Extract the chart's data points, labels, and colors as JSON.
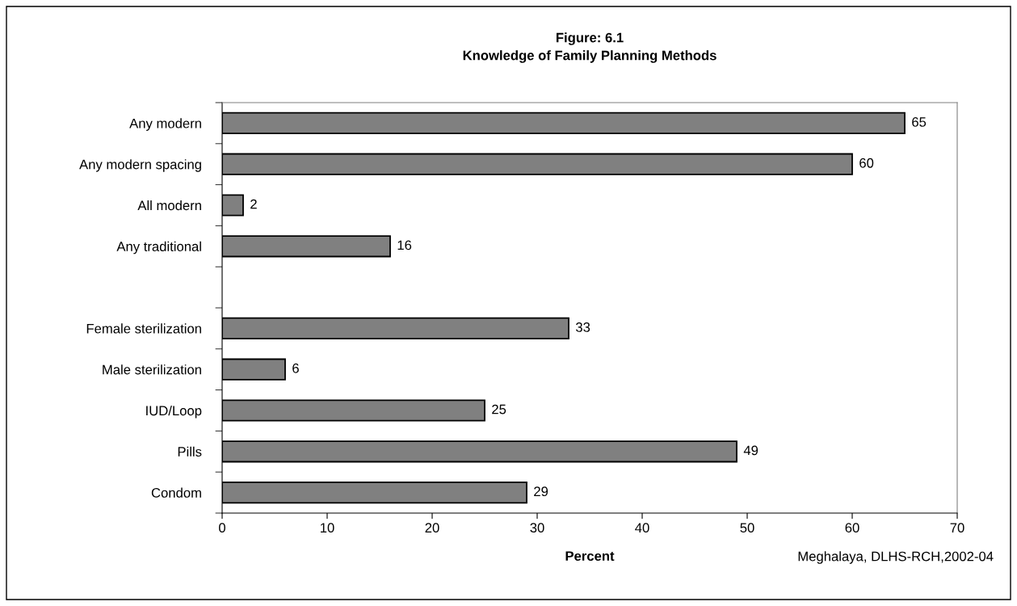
{
  "chart_data": {
    "type": "bar",
    "orientation": "horizontal",
    "title": "Figure: 6.1",
    "subtitle": "Knowledge of Family Planning Methods",
    "xlabel": "Percent",
    "categories": [
      "Any modern",
      "Any modern spacing",
      "All modern",
      "Any traditional",
      null,
      "Female sterilization",
      "Male sterilization",
      "IUD/Loop",
      "Pills",
      "Condom"
    ],
    "values": [
      65,
      60,
      2,
      16,
      null,
      33,
      6,
      25,
      49,
      29
    ],
    "color": "#808080",
    "xlim": [
      0,
      70
    ],
    "xticks": [
      0,
      10,
      20,
      30,
      40,
      50,
      60,
      70
    ],
    "grid": false,
    "legend": false,
    "data_labels": true,
    "annotations": [
      "Meghalaya, DLHS-RCH,2002-04"
    ]
  }
}
